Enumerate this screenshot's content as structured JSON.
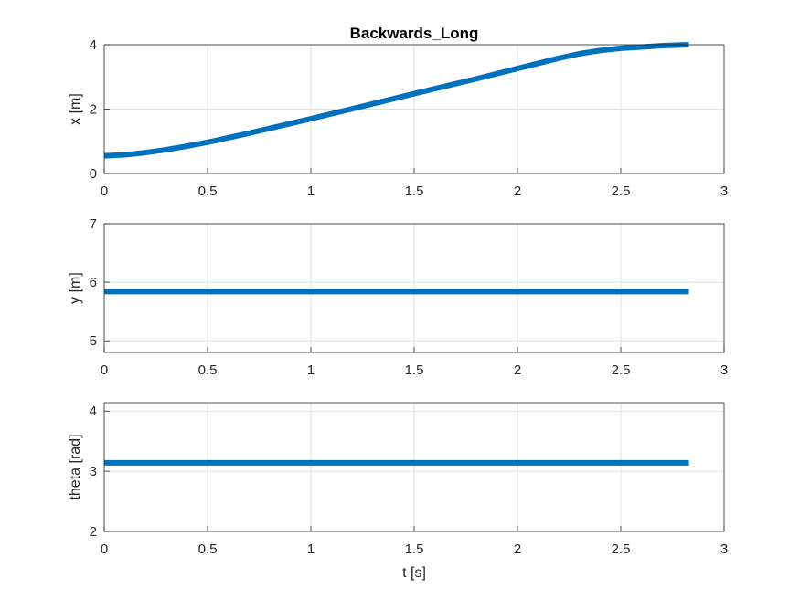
{
  "colors": {
    "line": "#0072BD",
    "axes": "#262626",
    "grid": "#DFDFDF",
    "background": "#FFFFFF"
  },
  "chart_data": [
    {
      "type": "line",
      "title": "Backwards_Long",
      "xlabel": "",
      "ylabel": "x [m]",
      "xlim": [
        0,
        3
      ],
      "ylim": [
        0,
        4
      ],
      "xticks": [
        "0",
        "0.5",
        "1",
        "1.5",
        "2",
        "2.5",
        "3"
      ],
      "yticks": [
        "0",
        "2",
        "4"
      ],
      "grid": true,
      "series": [
        {
          "x": [
            0,
            0.1,
            0.2,
            0.3,
            0.4,
            0.5,
            0.7,
            1.0,
            1.2,
            1.5,
            1.8,
            2.0,
            2.2,
            2.3,
            2.4,
            2.5,
            2.6,
            2.7,
            2.83
          ],
          "y": [
            0.55,
            0.58,
            0.65,
            0.74,
            0.85,
            0.97,
            1.25,
            1.7,
            2.01,
            2.48,
            2.94,
            3.26,
            3.58,
            3.72,
            3.82,
            3.89,
            3.93,
            3.97,
            4.0
          ]
        }
      ]
    },
    {
      "type": "line",
      "title": "",
      "xlabel": "",
      "ylabel": "y [m]",
      "xlim": [
        0,
        3
      ],
      "ylim": [
        4.8,
        7
      ],
      "xticks": [
        "0",
        "0.5",
        "1",
        "1.5",
        "2",
        "2.5",
        "3"
      ],
      "yticks": [
        "5",
        "6",
        "7"
      ],
      "grid": true,
      "series": [
        {
          "x": [
            0,
            2.83
          ],
          "y": [
            5.84,
            5.84
          ]
        }
      ]
    },
    {
      "type": "line",
      "title": "",
      "xlabel": "t [s]",
      "ylabel": "theta [rad]",
      "xlim": [
        0,
        3
      ],
      "ylim": [
        2,
        4.14
      ],
      "xticks": [
        "0",
        "0.5",
        "1",
        "1.5",
        "2",
        "2.5",
        "3"
      ],
      "yticks": [
        "2",
        "3",
        "4"
      ],
      "grid": true,
      "series": [
        {
          "x": [
            0,
            2.83
          ],
          "y": [
            3.14,
            3.14
          ]
        }
      ]
    }
  ]
}
